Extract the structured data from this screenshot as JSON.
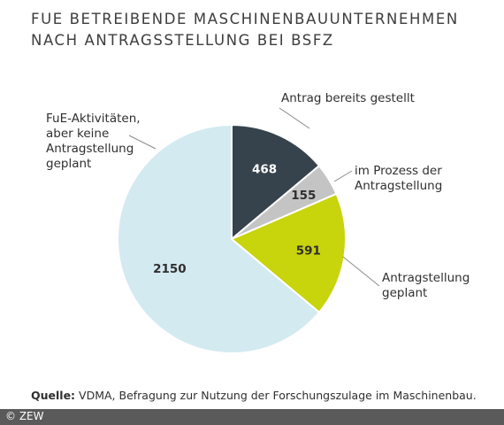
{
  "title_lines": [
    "FuE betreibende Maschinenbauunternehmen",
    "nach Antragsstellung bei BSFZ"
  ],
  "chart_data": {
    "type": "pie",
    "title": "FuE betreibende Maschinenbauunternehmen nach Antragsstellung bei BSFZ",
    "start": "12 o'clock, clockwise",
    "slices": [
      {
        "value": 468,
        "value_label": "468",
        "label_lines": [
          "Antrag bereits gestellt"
        ],
        "color": "#36434c",
        "value_color": "#ffffff"
      },
      {
        "value": 155,
        "value_label": "155",
        "label_lines": [
          "im Prozess der",
          "Antragstellung"
        ],
        "color": "#c4c4c4",
        "value_color": "#2f2f2f"
      },
      {
        "value": 591,
        "value_label": "591",
        "label_lines": [
          "Antragstellung",
          "geplant"
        ],
        "color": "#c8d40c",
        "value_color": "#2f2f2f"
      },
      {
        "value": 2150,
        "value_label": "2150",
        "label_lines": [
          "FuE-Aktivitäten,",
          "aber keine",
          "Antragstellung",
          "geplant"
        ],
        "color": "#d4eaf1",
        "value_color": "#2f2f2f"
      }
    ]
  },
  "source": {
    "prefix": "Quelle:",
    "text": " VDMA, Befragung zur Nutzung der Forschungszulage im Maschinenbau."
  },
  "footer": "© ZEW"
}
